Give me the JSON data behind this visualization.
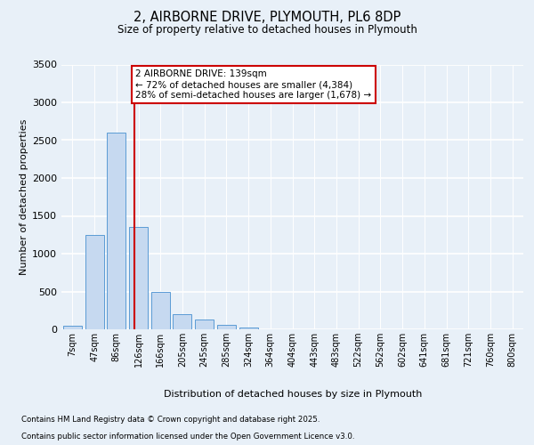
{
  "title_line1": "2, AIRBORNE DRIVE, PLYMOUTH, PL6 8DP",
  "title_line2": "Size of property relative to detached houses in Plymouth",
  "xlabel": "Distribution of detached houses by size in Plymouth",
  "ylabel": "Number of detached properties",
  "bar_labels": [
    "7sqm",
    "47sqm",
    "86sqm",
    "126sqm",
    "166sqm",
    "205sqm",
    "245sqm",
    "285sqm",
    "324sqm",
    "364sqm",
    "404sqm",
    "443sqm",
    "483sqm",
    "522sqm",
    "562sqm",
    "602sqm",
    "641sqm",
    "681sqm",
    "721sqm",
    "760sqm",
    "800sqm"
  ],
  "bar_values": [
    50,
    1250,
    2600,
    1350,
    500,
    200,
    130,
    60,
    20,
    5,
    2,
    0,
    0,
    0,
    0,
    0,
    0,
    0,
    0,
    0,
    0
  ],
  "bar_color": "#c6d9f0",
  "bar_edge_color": "#5b9bd5",
  "annotation_line1": "2 AIRBORNE DRIVE: 139sqm",
  "annotation_line2": "← 72% of detached houses are smaller (4,384)",
  "annotation_line3": "28% of semi-detached houses are larger (1,678) →",
  "vline_color": "#cc0000",
  "ylim_max": 3500,
  "yticks": [
    0,
    500,
    1000,
    1500,
    2000,
    2500,
    3000,
    3500
  ],
  "footnote1": "Contains HM Land Registry data © Crown copyright and database right 2025.",
  "footnote2": "Contains public sector information licensed under the Open Government Licence v3.0.",
  "bg_color": "#e8f0f8",
  "grid_color": "#ffffff",
  "annot_edge_color": "#cc0000",
  "annot_face_color": "#ffffff",
  "property_sqm": 139,
  "bin_edges": [
    7,
    47,
    86,
    126,
    166,
    205,
    245,
    285,
    324,
    364,
    404,
    443,
    483,
    522,
    562,
    602,
    641,
    681,
    721,
    760,
    800
  ]
}
